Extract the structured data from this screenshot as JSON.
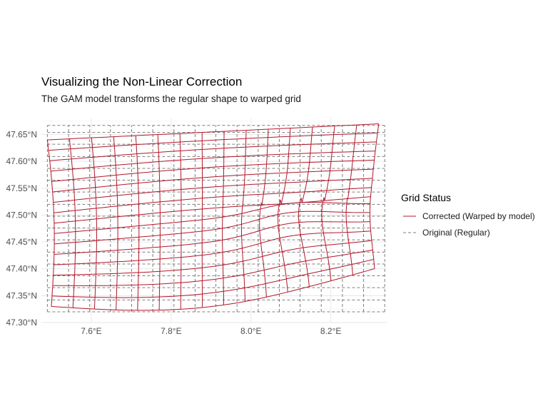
{
  "chart_data": {
    "type": "line",
    "title": "Visualizing the Non-Linear Correction",
    "subtitle": "The GAM model transforms the regular shape to warped grid",
    "xlabel": "",
    "ylabel": "",
    "xlim": [
      7.475,
      8.34
    ],
    "ylim": [
      47.3,
      47.68
    ],
    "x_ticks": [
      {
        "value": 7.6,
        "label": "7.6°E"
      },
      {
        "value": 7.8,
        "label": "7.8°E"
      },
      {
        "value": 8.0,
        "label": "8.0°E"
      },
      {
        "value": 8.2,
        "label": "8.2°E"
      }
    ],
    "y_ticks": [
      {
        "value": 47.3,
        "label": "47.30°N"
      },
      {
        "value": 47.35,
        "label": "47.35°N"
      },
      {
        "value": 47.4,
        "label": "47.40°N"
      },
      {
        "value": 47.45,
        "label": "47.45°N"
      },
      {
        "value": 47.5,
        "label": "47.50°N"
      },
      {
        "value": 47.55,
        "label": "47.55°N"
      },
      {
        "value": 47.6,
        "label": "47.60°N"
      },
      {
        "value": 47.65,
        "label": "47.65°N"
      }
    ],
    "grid": true,
    "legend": {
      "title": "Grid Status",
      "placement": "right",
      "entries": [
        {
          "label": "Corrected (Warped by model)",
          "color": "#b2182b",
          "dash": "solid"
        },
        {
          "label": "Original (Regular)",
          "color": "#7f7f7f",
          "dash": "dashed"
        }
      ]
    },
    "series": [
      {
        "name": "Original (Regular)",
        "color": "#7f7f7f",
        "style": "dashed",
        "x_lines": [
          7.49,
          7.543,
          7.596,
          7.648,
          7.701,
          7.754,
          7.807,
          7.86,
          7.912,
          7.965,
          8.018,
          8.071,
          8.123,
          8.176,
          8.229,
          8.282,
          8.335
        ],
        "y_lines": [
          47.32,
          47.342,
          47.365,
          47.387,
          47.409,
          47.431,
          47.454,
          47.476,
          47.498,
          47.52,
          47.543,
          47.565,
          47.587,
          47.609,
          47.632,
          47.654,
          47.667
        ],
        "extent": {
          "x": [
            7.49,
            8.335
          ],
          "y": [
            47.32,
            47.667
          ]
        }
      },
      {
        "name": "Corrected (Warped by model)",
        "color": "#b2182b",
        "style": "solid",
        "corners": {
          "top_left": [
            7.49,
            47.64
          ],
          "top_right": [
            8.32,
            47.67
          ],
          "bottom_left": [
            7.5,
            47.33
          ],
          "bottom_right": [
            8.31,
            47.4
          ]
        },
        "top_edge": [
          [
            7.49,
            47.64
          ],
          [
            7.7,
            47.66
          ],
          [
            8.0,
            47.66
          ],
          [
            8.3,
            47.67
          ]
        ],
        "bottom_edge": [
          [
            7.5,
            47.33
          ],
          [
            7.62,
            47.33
          ],
          [
            7.8,
            47.325
          ],
          [
            8.0,
            47.34
          ],
          [
            8.2,
            47.38
          ],
          [
            8.31,
            47.4
          ]
        ],
        "left_edge": [
          [
            7.49,
            47.64
          ],
          [
            7.51,
            47.5
          ],
          [
            7.5,
            47.33
          ]
        ],
        "right_edge": [
          [
            8.3,
            47.67
          ],
          [
            8.32,
            47.56
          ],
          [
            8.31,
            47.4
          ]
        ]
      }
    ]
  }
}
